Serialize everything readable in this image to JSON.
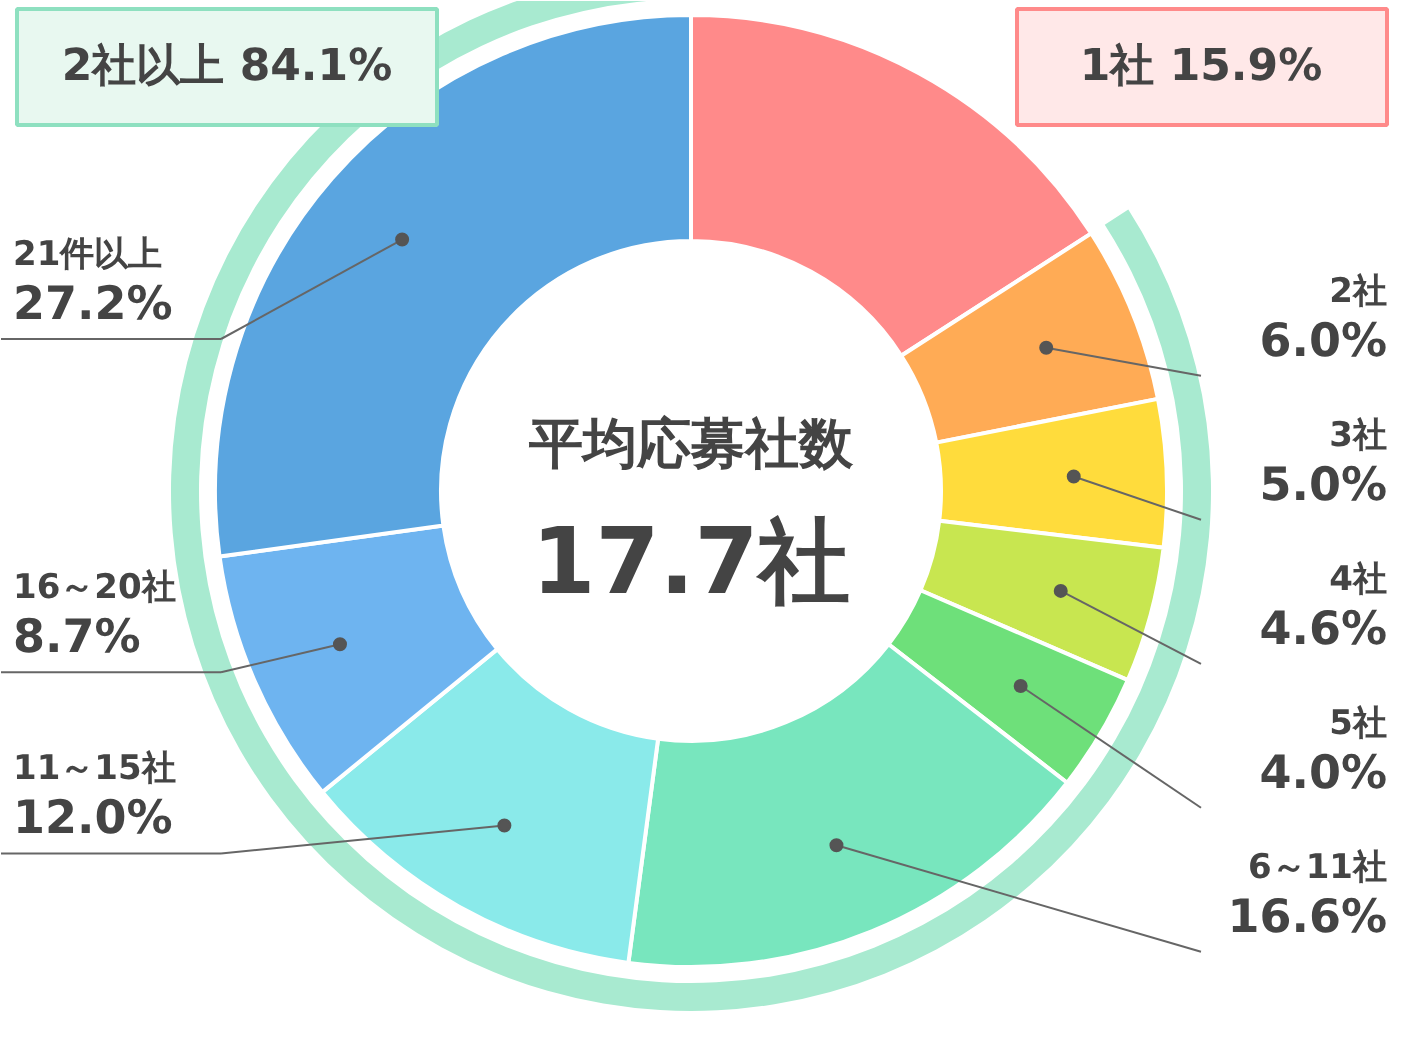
{
  "chart_data": {
    "type": "donut",
    "categories": [
      "1社",
      "2社",
      "3社",
      "4社",
      "5社",
      "6～11社",
      "11～15社",
      "16～20社",
      "21件以上"
    ],
    "values": [
      15.9,
      6.0,
      5.0,
      4.6,
      4.0,
      16.6,
      12.0,
      8.7,
      27.2
    ],
    "colors": [
      "#ff8a8a",
      "#ffab55",
      "#ffdc3c",
      "#c8e650",
      "#6ee07a",
      "#78e6be",
      "#8aeaea",
      "#6eb4f0",
      "#5aa5e0"
    ],
    "value_labels": [
      "15.9%",
      "6.0%",
      "5.0%",
      "4.6%",
      "4.0%",
      "16.6%",
      "12.0%",
      "8.7%",
      "27.2%"
    ],
    "annotations": [
      "2社以上 84.1%",
      "平均応募社数",
      "17.7社"
    ]
  }
}
